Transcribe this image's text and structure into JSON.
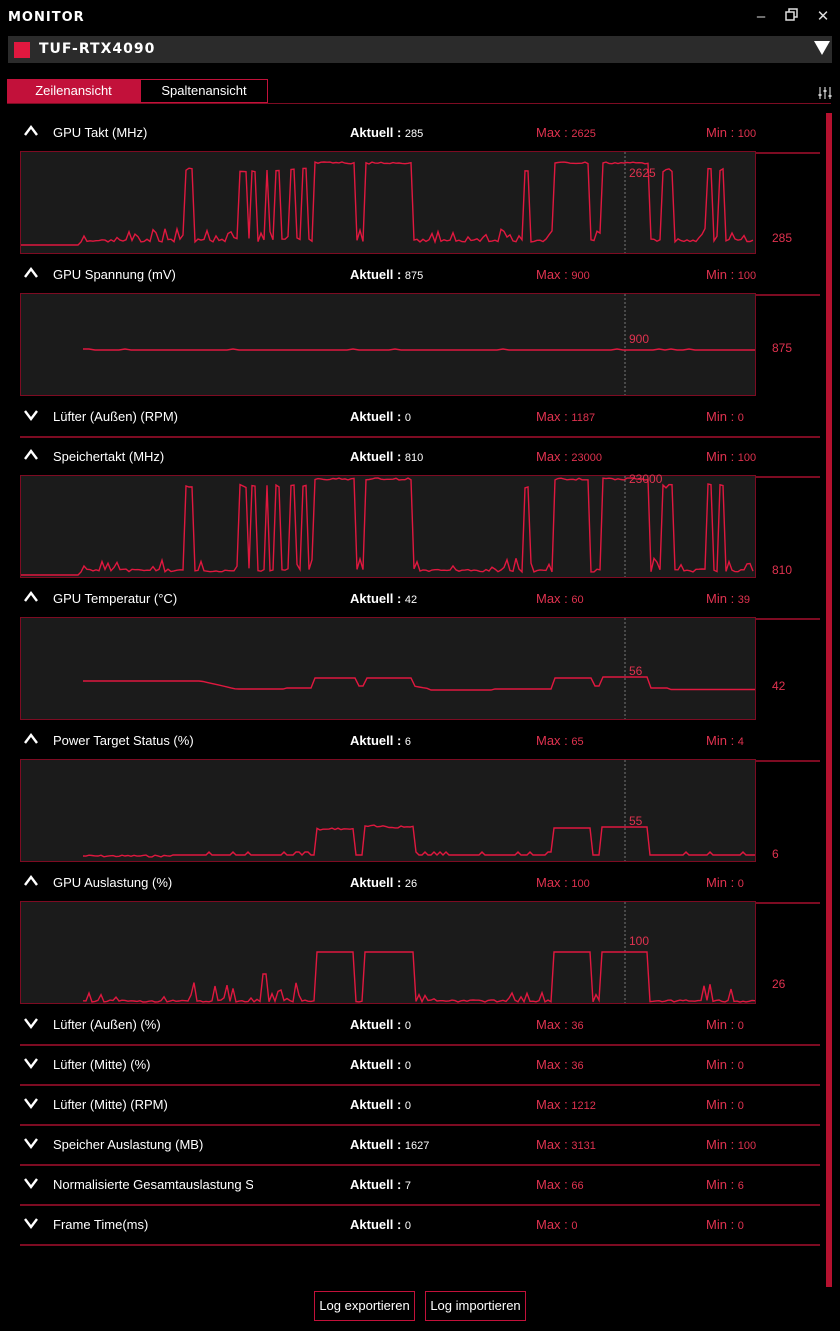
{
  "app": {
    "title": "MONITOR"
  },
  "device": {
    "name": "TUF-RTX4090"
  },
  "tabs": {
    "row_view": "Zeilenansicht",
    "column_view": "Spaltenansicht"
  },
  "labels": {
    "current": "Aktuell",
    "max": "Max",
    "min": "Min"
  },
  "metrics": [
    {
      "label": "GPU Takt (MHz)",
      "current": "285",
      "max": "2625",
      "min": "100",
      "expanded": true,
      "peak_label": "2625",
      "current_label": "285"
    },
    {
      "label": "GPU Spannung (mV)",
      "current": "875",
      "max": "900",
      "min": "100",
      "expanded": true,
      "peak_label": "900",
      "current_label": "875"
    },
    {
      "label": "Lüfter (Außen) (RPM)",
      "current": "0",
      "max": "1187",
      "min": "0",
      "expanded": false
    },
    {
      "label": "Speichertakt (MHz)",
      "current": "810",
      "max": "23000",
      "min": "100",
      "expanded": true,
      "peak_label": "23000",
      "current_label": "810"
    },
    {
      "label": "GPU Temperatur (°C)",
      "current": "42",
      "max": "60",
      "min": "39",
      "expanded": true,
      "peak_label": "56",
      "current_label": "42"
    },
    {
      "label": "Power Target Status (%)",
      "current": "6",
      "max": "65",
      "min": "4",
      "expanded": true,
      "peak_label": "55",
      "current_label": "6"
    },
    {
      "label": "GPU Auslastung (%)",
      "current": "26",
      "max": "100",
      "min": "0",
      "expanded": true,
      "peak_label": "100",
      "current_label": "26"
    },
    {
      "label": "Lüfter (Außen) (%)",
      "current": "0",
      "max": "36",
      "min": "0",
      "expanded": false
    },
    {
      "label": "Lüfter (Mitte) (%)",
      "current": "0",
      "max": "36",
      "min": "0",
      "expanded": false
    },
    {
      "label": "Lüfter (Mitte) (RPM)",
      "current": "0",
      "max": "1212",
      "min": "0",
      "expanded": false
    },
    {
      "label": "Speicher Auslastung (MB)",
      "current": "1627",
      "max": "3131",
      "min": "100",
      "expanded": false
    },
    {
      "label": "Normalisierte Gesamtauslastung S",
      "current": "7",
      "max": "66",
      "min": "6",
      "expanded": false
    },
    {
      "label": "Frame Time(ms)",
      "current": "0",
      "max": "0",
      "min": "0",
      "expanded": false
    }
  ],
  "footer": {
    "export": "Log exportieren",
    "import": "Log importieren"
  },
  "colors": {
    "accent": "#c2113a",
    "line": "#e0183f",
    "border": "#7d0b22",
    "graph_bg": "#1b1b1b"
  },
  "icons": {
    "minimize": "minimize-icon",
    "restore": "restore-icon",
    "close": "close-icon",
    "settings": "sliders-icon",
    "collapse": "chevron-up-icon",
    "expand": "chevron-down-icon",
    "dropdown": "dropdown-arrow-icon"
  }
}
